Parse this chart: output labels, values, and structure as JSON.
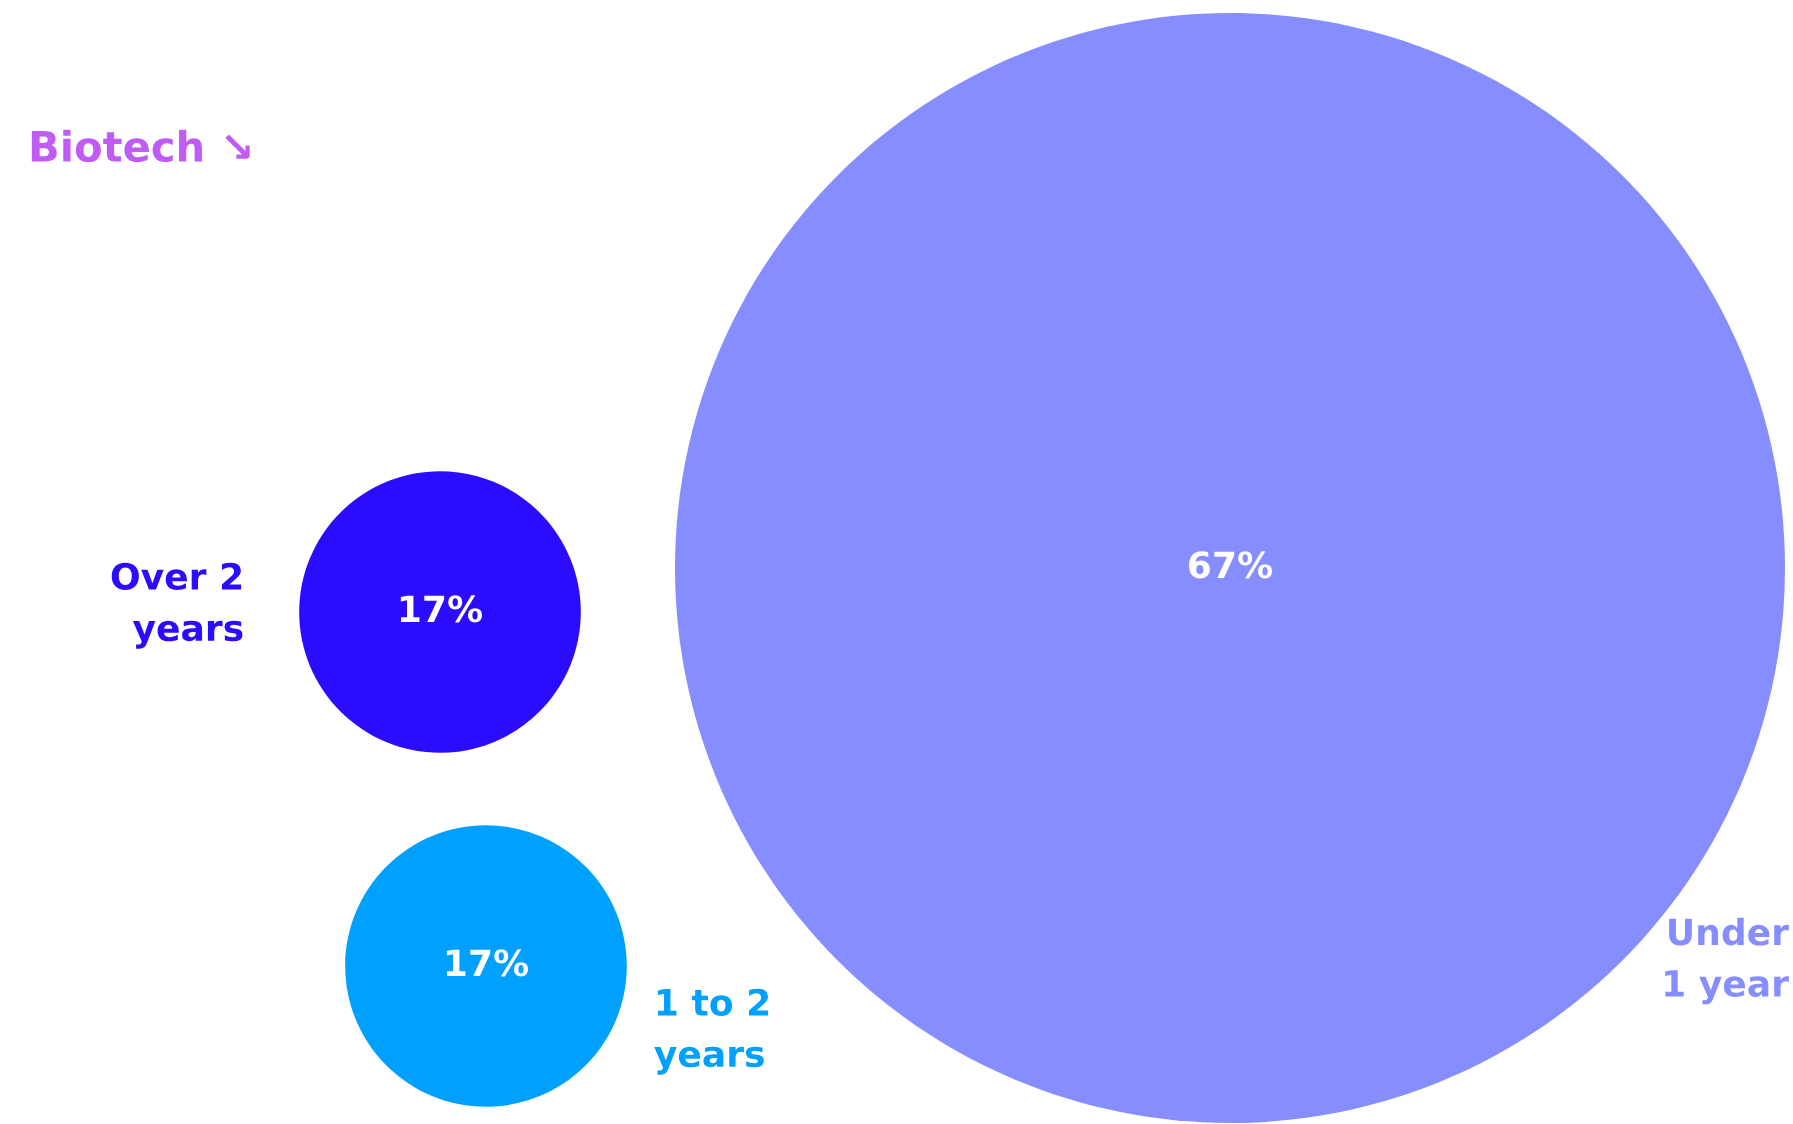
{
  "chart_data": {
    "type": "other",
    "title": "Biotech ↘",
    "categories": [
      "Over 2\nyears",
      "1 to 2\nyears",
      "Under\n1 year"
    ],
    "values": [
      17,
      17,
      67
    ],
    "value_labels": [
      "17%",
      "17%",
      "67%"
    ],
    "colors": [
      "#2b0cff",
      "#00a0ff",
      "#868dfe"
    ]
  }
}
